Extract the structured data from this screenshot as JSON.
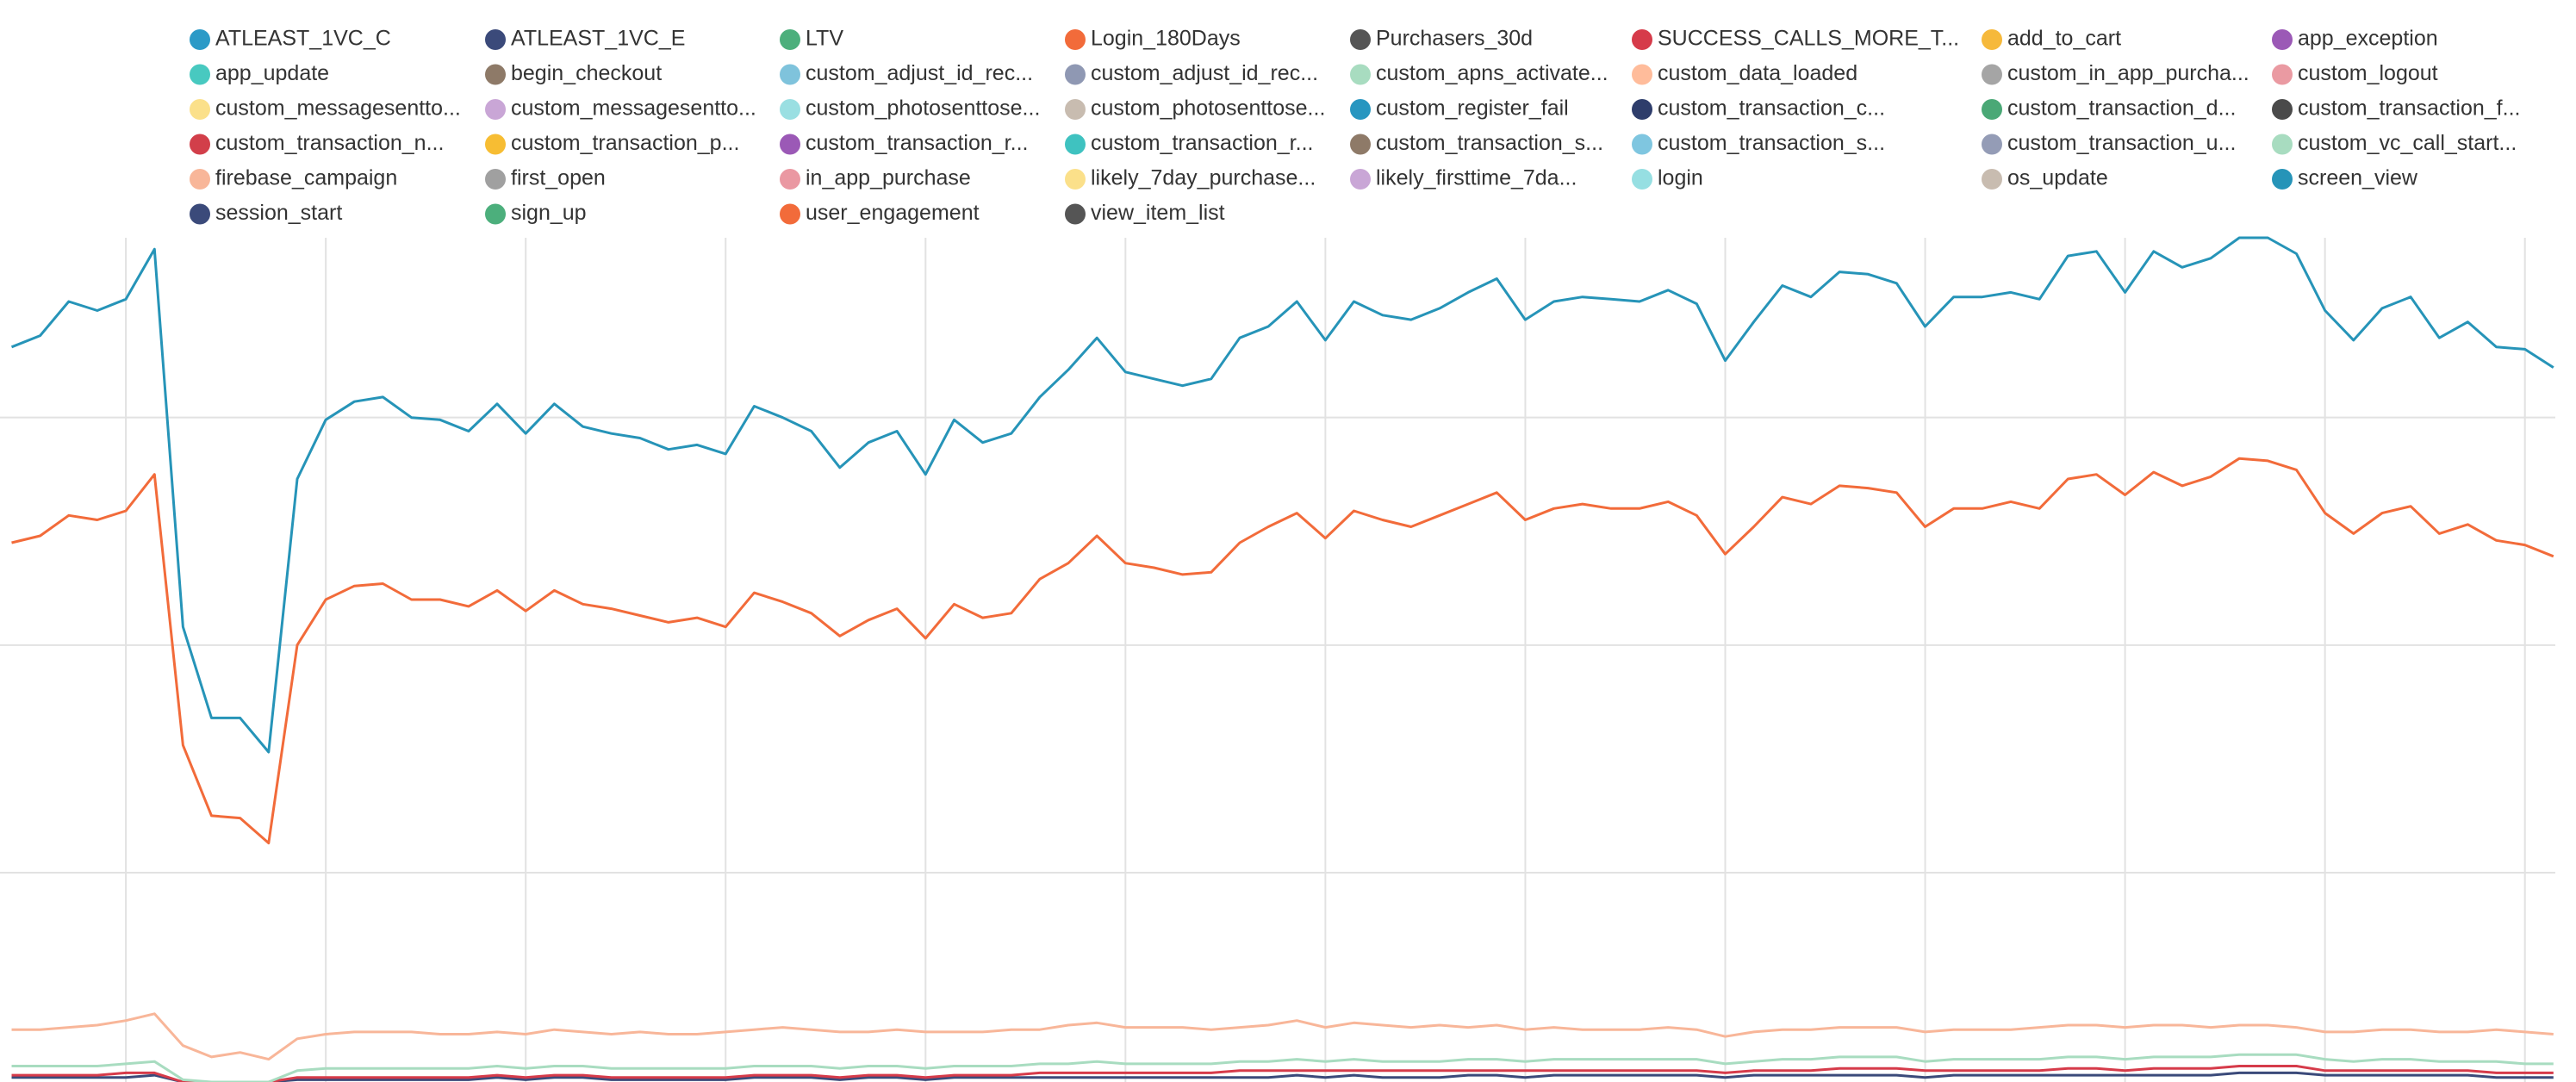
{
  "chart_data": {
    "type": "line",
    "categories": [
      null,
      null,
      null,
      null,
      null,
      null,
      null,
      null,
      null,
      null,
      null,
      null,
      null,
      null,
      null,
      null,
      null,
      null,
      null,
      null,
      null,
      null,
      null,
      null,
      null,
      null,
      null,
      null,
      null,
      null,
      null,
      null,
      null,
      null,
      null,
      null,
      null,
      null,
      null,
      null,
      null,
      null,
      null,
      null,
      null,
      null,
      null,
      null,
      null,
      null,
      null,
      null,
      null,
      null,
      null,
      null,
      null,
      null,
      null,
      null,
      null,
      null,
      null,
      null,
      null,
      null,
      null,
      null,
      null,
      null,
      null,
      null,
      null,
      null,
      null,
      null,
      null,
      null,
      null,
      null,
      null,
      null,
      null,
      null,
      null,
      null,
      null,
      null,
      null,
      null
    ],
    "ylim": [
      8,
      379
    ],
    "yticks": [
      100,
      200,
      300
    ],
    "grid": true,
    "series": [
      {
        "name": "ATLEAST_1VC_C",
        "color": "#2b9ac7"
      },
      {
        "name": "ATLEAST_1VC_E",
        "color": "#3b4a7a"
      },
      {
        "name": "LTV",
        "color": "#4caf7c"
      },
      {
        "name": "Login_180Days",
        "color": "#f26b3a"
      },
      {
        "name": "Purchasers_30d",
        "color": "#555555"
      },
      {
        "name": "SUCCESS_CALLS_MORE_T...",
        "color": "#d63b4a",
        "values": [
          11,
          11,
          11,
          11,
          12,
          12,
          8,
          8,
          8,
          8,
          10,
          10,
          10,
          10,
          10,
          10,
          10,
          11,
          10,
          11,
          11,
          10,
          10,
          10,
          10,
          10,
          11,
          11,
          11,
          10,
          11,
          11,
          10,
          11,
          11,
          11,
          12,
          12,
          12,
          12,
          12,
          12,
          12,
          13,
          13,
          13,
          13,
          13,
          13,
          13,
          13,
          13,
          13,
          13,
          13,
          13,
          13,
          13,
          13,
          13,
          12,
          13,
          13,
          13,
          14,
          14,
          14,
          13,
          13,
          13,
          13,
          13,
          14,
          14,
          13,
          14,
          14,
          14,
          15,
          15,
          15,
          13,
          13,
          13,
          13,
          13,
          13,
          12,
          12,
          12
        ]
      },
      {
        "name": "add_to_cart",
        "color": "#f6b93b"
      },
      {
        "name": "app_exception",
        "color": "#9b59b6"
      },
      {
        "name": "app_update",
        "color": "#48c9c0"
      },
      {
        "name": "begin_checkout",
        "color": "#8e7a68"
      },
      {
        "name": "custom_adjust_id_rec...",
        "color": "#7fc3dc"
      },
      {
        "name": "custom_adjust_id_rec...",
        "color": "#8f98b3"
      },
      {
        "name": "custom_apns_activate...",
        "color": "#a8dcc0"
      },
      {
        "name": "custom_data_loaded",
        "color": "#ffbc9b"
      },
      {
        "name": "custom_in_app_purcha...",
        "color": "#a5a5a5"
      },
      {
        "name": "custom_logout",
        "color": "#ea9aa2"
      },
      {
        "name": "custom_messagesentto...",
        "color": "#fbe08a"
      },
      {
        "name": "custom_messagesentto...",
        "color": "#c9a6d6"
      },
      {
        "name": "custom_photosenttose...",
        "color": "#9adfe2"
      },
      {
        "name": "custom_photosenttose...",
        "color": "#c8bcb0"
      },
      {
        "name": "custom_register_fail",
        "color": "#2796c0"
      },
      {
        "name": "custom_transaction_c...",
        "color": "#2e3d6b"
      },
      {
        "name": "custom_transaction_d...",
        "color": "#4aa876"
      },
      {
        "name": "custom_transaction_f...",
        "color": "#4a4a4a"
      },
      {
        "name": "custom_transaction_n...",
        "color": "#d23f4a"
      },
      {
        "name": "custom_transaction_p...",
        "color": "#f7bd33"
      },
      {
        "name": "custom_transaction_r...",
        "color": "#9b59b6"
      },
      {
        "name": "custom_transaction_r...",
        "color": "#3fc2c0"
      },
      {
        "name": "custom_transaction_s...",
        "color": "#8e7a68"
      },
      {
        "name": "custom_transaction_s...",
        "color": "#7fc6e0"
      },
      {
        "name": "custom_transaction_u...",
        "color": "#949cb6"
      },
      {
        "name": "custom_vc_call_start...",
        "color": "#a8dcc0",
        "values": [
          15,
          15,
          15,
          15,
          16,
          17,
          9,
          8,
          8,
          8,
          13,
          14,
          14,
          14,
          14,
          14,
          14,
          15,
          14,
          15,
          15,
          14,
          14,
          14,
          14,
          14,
          15,
          15,
          15,
          14,
          15,
          15,
          14,
          15,
          15,
          15,
          16,
          16,
          17,
          16,
          16,
          16,
          16,
          17,
          17,
          18,
          17,
          18,
          17,
          17,
          17,
          18,
          18,
          17,
          18,
          18,
          18,
          18,
          18,
          18,
          16,
          17,
          18,
          18,
          19,
          19,
          19,
          17,
          18,
          18,
          18,
          18,
          19,
          19,
          18,
          19,
          19,
          19,
          20,
          20,
          20,
          18,
          17,
          18,
          18,
          17,
          17,
          17,
          16,
          16
        ]
      },
      {
        "name": "firebase_campaign",
        "color": "#f8b699",
        "values": [
          31,
          31,
          32,
          33,
          35,
          38,
          24,
          19,
          21,
          18,
          27,
          29,
          30,
          30,
          30,
          29,
          29,
          30,
          29,
          31,
          30,
          29,
          30,
          29,
          29,
          30,
          31,
          32,
          31,
          30,
          30,
          31,
          30,
          30,
          30,
          31,
          31,
          33,
          34,
          32,
          32,
          32,
          31,
          32,
          33,
          35,
          32,
          34,
          33,
          32,
          33,
          32,
          33,
          31,
          32,
          31,
          31,
          31,
          32,
          31,
          28,
          30,
          31,
          31,
          32,
          32,
          32,
          30,
          31,
          31,
          31,
          32,
          33,
          33,
          32,
          33,
          33,
          32,
          33,
          33,
          32,
          30,
          30,
          31,
          31,
          30,
          30,
          31,
          30,
          29
        ]
      },
      {
        "name": "first_open",
        "color": "#a0a0a0"
      },
      {
        "name": "in_app_purchase",
        "color": "#ea98a2"
      },
      {
        "name": "likely_7day_purchase...",
        "color": "#fbe08a"
      },
      {
        "name": "likely_firsttime_7da...",
        "color": "#c9a6d6"
      },
      {
        "name": "login",
        "color": "#96dfe2"
      },
      {
        "name": "os_update",
        "color": "#c8bcb0"
      },
      {
        "name": "screen_view",
        "color": "#2694b8",
        "values": [
          331,
          336,
          351,
          347,
          352,
          374,
          208,
          168,
          168,
          153,
          273,
          299,
          307,
          309,
          300,
          299,
          294,
          306,
          293,
          306,
          296,
          293,
          291,
          286,
          288,
          284,
          305,
          300,
          294,
          278,
          289,
          294,
          275,
          299,
          289,
          293,
          309,
          321,
          335,
          320,
          317,
          314,
          317,
          335,
          340,
          351,
          334,
          351,
          345,
          343,
          348,
          355,
          361,
          343,
          351,
          353,
          352,
          351,
          356,
          350,
          325,
          342,
          358,
          353,
          364,
          363,
          359,
          340,
          353,
          353,
          355,
          352,
          371,
          373,
          355,
          373,
          366,
          370,
          379,
          379,
          372,
          347,
          334,
          348,
          353,
          335,
          342,
          331,
          330,
          322
        ]
      },
      {
        "name": "session_start",
        "color": "#3b4a7a",
        "values": [
          10,
          10,
          10,
          10,
          10,
          11,
          8,
          8,
          8,
          8,
          9,
          9,
          9,
          9,
          9,
          9,
          9,
          10,
          9,
          10,
          10,
          9,
          9,
          9,
          9,
          9,
          10,
          10,
          10,
          9,
          10,
          10,
          9,
          10,
          10,
          10,
          10,
          10,
          10,
          10,
          10,
          10,
          10,
          10,
          10,
          11,
          10,
          11,
          10,
          10,
          10,
          11,
          11,
          10,
          11,
          11,
          11,
          11,
          11,
          11,
          10,
          11,
          11,
          11,
          11,
          11,
          11,
          10,
          11,
          11,
          11,
          11,
          11,
          11,
          11,
          11,
          11,
          11,
          12,
          12,
          12,
          11,
          11,
          11,
          11,
          11,
          11,
          10,
          10,
          10
        ]
      },
      {
        "name": "sign_up",
        "color": "#4caf7c"
      },
      {
        "name": "user_engagement",
        "color": "#f26b3a",
        "values": [
          245,
          248,
          257,
          255,
          259,
          275,
          156,
          125,
          124,
          113,
          200,
          220,
          226,
          227,
          220,
          220,
          217,
          224,
          215,
          224,
          218,
          216,
          213,
          210,
          212,
          208,
          223,
          219,
          214,
          204,
          211,
          216,
          203,
          218,
          212,
          214,
          229,
          236,
          248,
          236,
          234,
          231,
          232,
          245,
          252,
          258,
          247,
          259,
          255,
          252,
          257,
          262,
          267,
          255,
          260,
          262,
          260,
          260,
          263,
          257,
          240,
          252,
          265,
          262,
          270,
          269,
          267,
          252,
          260,
          260,
          263,
          260,
          273,
          275,
          266,
          276,
          270,
          274,
          282,
          281,
          277,
          258,
          249,
          258,
          261,
          249,
          253,
          246,
          244,
          239
        ]
      },
      {
        "name": "view_item_list",
        "color": "#555555"
      }
    ]
  }
}
